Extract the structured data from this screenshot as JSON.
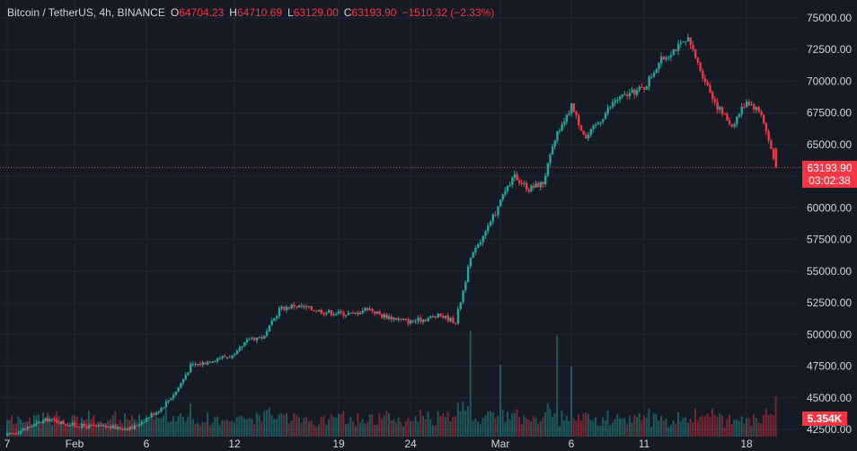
{
  "header": {
    "symbol": "Bitcoin / TetherUS, 4h, BINANCE",
    "open_label": "O",
    "open": "64704.23",
    "high_label": "H",
    "high": "64710.69",
    "low_label": "L",
    "low": "63129.00",
    "close_label": "C",
    "close": "63193.90",
    "change": "−1510.32 (−2.33%)"
  },
  "last_price": {
    "value": "63193.90",
    "countdown": "03:02:38"
  },
  "volume_badge": "5.354K",
  "colors": {
    "up": "#26a69a",
    "down": "#f23645",
    "grid": "#232733",
    "text": "#d1d4dc",
    "background": "#161a25"
  },
  "chart_data": {
    "type": "candlestick",
    "interval": "4h",
    "ylim": [
      42500,
      75000
    ],
    "y_ticks": [
      "75000.00",
      "72500.00",
      "70000.00",
      "67500.00",
      "65000.00",
      "62500.00",
      "60000.00",
      "57500.00",
      "55000.00",
      "52500.00",
      "50000.00",
      "47500.00",
      "45000.00",
      "42500.00"
    ],
    "x_ticks": [
      "7",
      "Feb",
      "6",
      "12",
      "19",
      "24",
      "Mar",
      "6",
      "11",
      "18"
    ],
    "last_close": 63193.9,
    "path_points": [
      {
        "d": "Jan 27",
        "p": 42000
      },
      {
        "d": "Jan 30",
        "p": 43300
      },
      {
        "d": "Feb 1",
        "p": 42800
      },
      {
        "d": "Feb 5",
        "p": 42600
      },
      {
        "d": "Feb 7",
        "p": 44200
      },
      {
        "d": "Feb 8",
        "p": 45500
      },
      {
        "d": "Feb 9",
        "p": 47500
      },
      {
        "d": "Feb 10",
        "p": 47800
      },
      {
        "d": "Feb 11",
        "p": 48200
      },
      {
        "d": "Feb 12",
        "p": 48300
      },
      {
        "d": "Feb 13",
        "p": 49700
      },
      {
        "d": "Feb 14",
        "p": 49800
      },
      {
        "d": "Feb 15",
        "p": 52000
      },
      {
        "d": "Feb 16",
        "p": 52300
      },
      {
        "d": "Feb 18",
        "p": 51800
      },
      {
        "d": "Feb 20",
        "p": 51600
      },
      {
        "d": "Feb 21",
        "p": 52100
      },
      {
        "d": "Feb 22",
        "p": 51500
      },
      {
        "d": "Feb 24",
        "p": 51000
      },
      {
        "d": "Feb 26",
        "p": 51500
      },
      {
        "d": "Feb 27",
        "p": 51000
      },
      {
        "d": "Feb 28",
        "p": 56000
      },
      {
        "d": "Feb 29",
        "p": 58000
      },
      {
        "d": "Mar 1",
        "p": 60500
      },
      {
        "d": "Mar 2",
        "p": 62500
      },
      {
        "d": "Mar 3",
        "p": 61500
      },
      {
        "d": "Mar 4",
        "p": 62000
      },
      {
        "d": "Mar 5",
        "p": 66000
      },
      {
        "d": "Mar 6",
        "p": 68000
      },
      {
        "d": "Mar 7",
        "p": 65500
      },
      {
        "d": "Mar 8",
        "p": 67000
      },
      {
        "d": "Mar 9",
        "p": 68500
      },
      {
        "d": "Mar 11",
        "p": 69500
      },
      {
        "d": "Mar 12",
        "p": 71500
      },
      {
        "d": "Mar 13",
        "p": 72500
      },
      {
        "d": "Mar 14",
        "p": 73200
      },
      {
        "d": "Mar 15",
        "p": 70500
      },
      {
        "d": "Mar 16",
        "p": 68000
      },
      {
        "d": "Mar 17",
        "p": 66500
      },
      {
        "d": "Mar 18",
        "p": 68500
      },
      {
        "d": "Mar 19",
        "p": 67500
      },
      {
        "d": "Mar 20",
        "p": 63193.9
      }
    ],
    "volume_peaks": [
      {
        "d": "Feb 28",
        "v": 1.0
      },
      {
        "d": "Mar 1",
        "v": 0.75
      },
      {
        "d": "Mar 5",
        "v": 1.0
      },
      {
        "d": "Mar 6",
        "v": 0.7
      }
    ]
  }
}
